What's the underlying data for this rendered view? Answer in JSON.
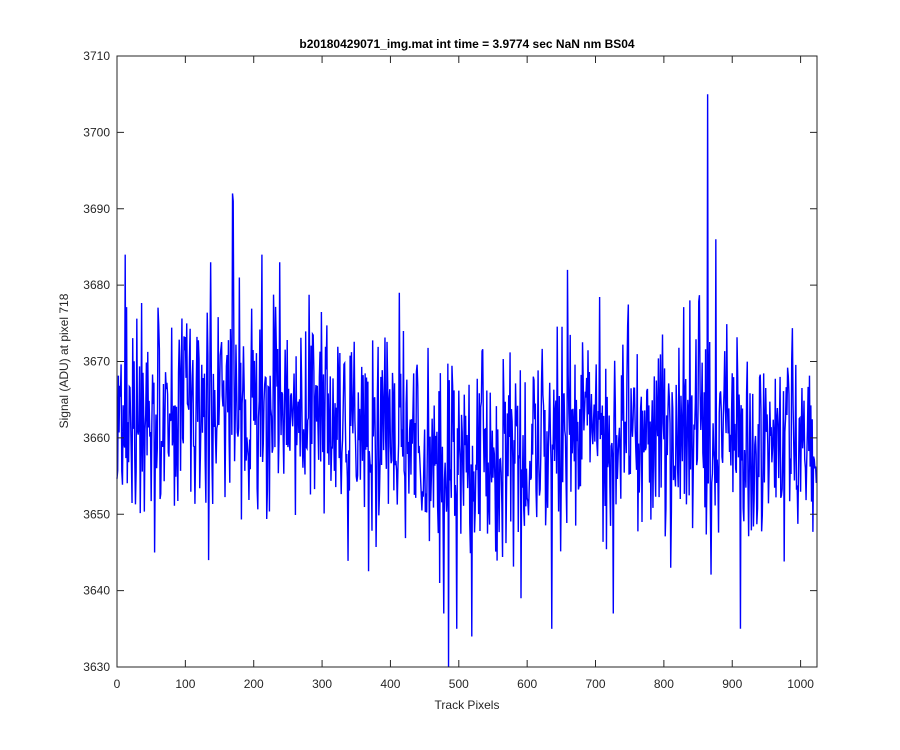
{
  "chart_data": {
    "type": "line",
    "title": "b20180429071_img.mat int time = 3.9774 sec  NaN nm BS04",
    "xlabel": "Track Pixels",
    "ylabel": "Signal (ADU) at pixel 718",
    "xlim": [
      0,
      1024
    ],
    "ylim": [
      3630,
      3710
    ],
    "xticks": [
      0,
      100,
      200,
      300,
      400,
      500,
      600,
      700,
      800,
      900,
      1000
    ],
    "yticks": [
      3630,
      3640,
      3650,
      3660,
      3670,
      3680,
      3690,
      3700,
      3710
    ],
    "grid": false,
    "line_color": "#0000ff",
    "series": [
      {
        "name": "",
        "noise": {
          "n_points": 1024,
          "baseline": [
            [
              0,
              3662
            ],
            [
              100,
              3663
            ],
            [
              200,
              3664
            ],
            [
              300,
              3663
            ],
            [
              400,
              3661
            ],
            [
              450,
              3659
            ],
            [
              500,
              3657
            ],
            [
              550,
              3657
            ],
            [
              600,
              3658
            ],
            [
              650,
              3659
            ],
            [
              700,
              3660
            ],
            [
              800,
              3660
            ],
            [
              870,
              3662
            ],
            [
              950,
              3659
            ],
            [
              1023,
              3658
            ]
          ],
          "amplitude": 7
        },
        "peaks": [
          {
            "x": 169,
            "y": 3692
          },
          {
            "x": 170,
            "y": 3691
          },
          {
            "x": 864,
            "y": 3705
          },
          {
            "x": 876,
            "y": 3686
          },
          {
            "x": 137,
            "y": 3683
          },
          {
            "x": 212,
            "y": 3684
          },
          {
            "x": 238,
            "y": 3683
          },
          {
            "x": 659,
            "y": 3682
          },
          {
            "x": 12,
            "y": 3684
          },
          {
            "x": 413,
            "y": 3679
          },
          {
            "x": 838,
            "y": 3678
          }
        ],
        "dips": [
          {
            "x": 485,
            "y": 3630
          },
          {
            "x": 478,
            "y": 3637
          },
          {
            "x": 497,
            "y": 3635
          },
          {
            "x": 519,
            "y": 3634
          },
          {
            "x": 636,
            "y": 3635
          },
          {
            "x": 591,
            "y": 3639
          },
          {
            "x": 726,
            "y": 3637
          },
          {
            "x": 912,
            "y": 3635
          },
          {
            "x": 55,
            "y": 3645
          },
          {
            "x": 134,
            "y": 3644
          },
          {
            "x": 810,
            "y": 3643
          }
        ]
      }
    ]
  }
}
